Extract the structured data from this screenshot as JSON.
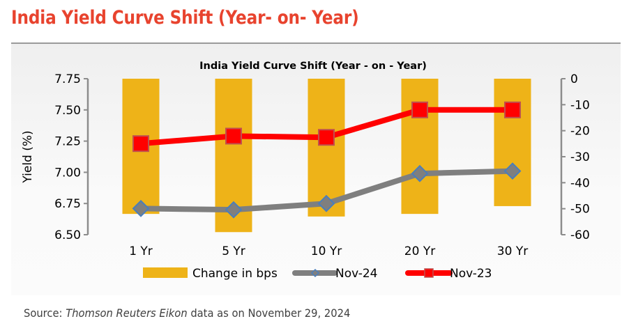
{
  "page": {
    "title": "India Yield Curve Shift (Year- on- Year)",
    "source_prefix": "Source: ",
    "source_italic": "Thomson Reuters Eikon",
    "source_suffix": " data as on November 29, 2024"
  },
  "chart_data": {
    "type": "bar+line",
    "title": "India Yield Curve Shift (Year - on - Year)",
    "xlabel": "",
    "ylabel": "Yield (%)",
    "y2label": "",
    "categories": [
      "1 Yr",
      "5 Yr",
      "10 Yr",
      "20 Yr",
      "30 Yr"
    ],
    "ylim": [
      6.5,
      7.75
    ],
    "yticks": [
      "7.75",
      "7.50",
      "7.25",
      "7.00",
      "6.75",
      "6.50"
    ],
    "ytick_values": [
      7.75,
      7.5,
      7.25,
      7.0,
      6.75,
      6.5
    ],
    "y2lim": [
      -60,
      0
    ],
    "y2ticks": [
      "0",
      "-10",
      "-20",
      "-30",
      "-40",
      "-50",
      "-60"
    ],
    "y2tick_values": [
      0,
      -10,
      -20,
      -30,
      -40,
      -50,
      -60
    ],
    "grid": false,
    "legend_position": "bottom",
    "series": [
      {
        "name": "Change in bps",
        "type": "bar",
        "axis": "right",
        "color": "#eeb318",
        "values": [
          -52,
          -59,
          -53,
          -52,
          -49
        ]
      },
      {
        "name": "Nov-24",
        "type": "line",
        "axis": "left",
        "color": "#7f7f7f",
        "marker": "diamond",
        "marker_color": "#7f7f7f",
        "marker_edge": "#4a7ebb",
        "values": [
          6.71,
          6.7,
          6.75,
          6.99,
          7.01
        ]
      },
      {
        "name": "Nov-23",
        "type": "line",
        "axis": "left",
        "color": "#ff0000",
        "marker": "square",
        "marker_color": "#ff0000",
        "marker_edge": "#c0504d",
        "values": [
          7.23,
          7.29,
          7.28,
          7.5,
          7.5
        ]
      }
    ]
  }
}
